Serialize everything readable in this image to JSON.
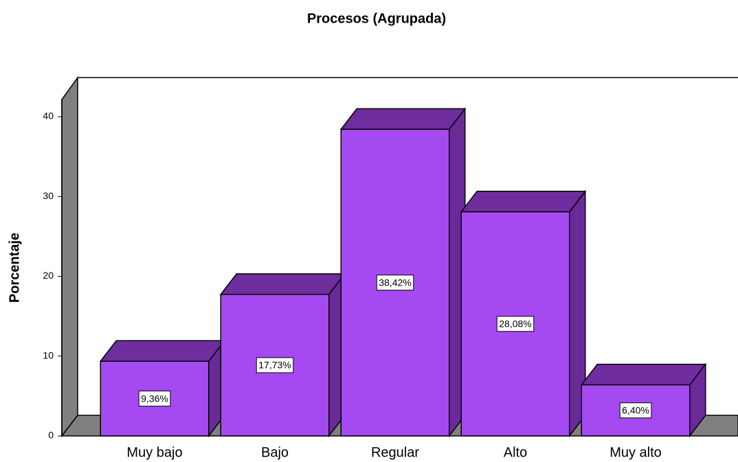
{
  "chart_data": {
    "type": "bar3d",
    "title": "Procesos (Agrupada)",
    "y_label": "Porcentaje",
    "categories": [
      "Muy bajo",
      "Bajo",
      "Regular",
      "Alto",
      "Muy alto"
    ],
    "values": [
      9.36,
      17.73,
      38.42,
      28.08,
      6.4
    ],
    "value_labels": [
      "9,36%",
      "17,73%",
      "38,42%",
      "28,08%",
      "6,40%"
    ],
    "color": "#a54af0",
    "ylim": [
      0,
      42
    ],
    "yticks": [
      0,
      10,
      20,
      30,
      40
    ],
    "grid": false
  }
}
